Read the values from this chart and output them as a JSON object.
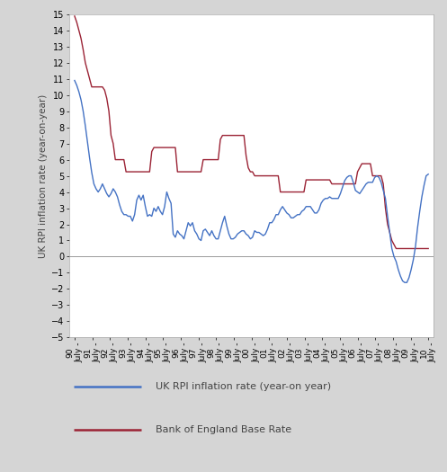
{
  "ylabel": "UK RPI inflation rate (year-on-year)",
  "ylim": [
    -5,
    15
  ],
  "yticks": [
    -5,
    -4,
    -3,
    -2,
    -1,
    0,
    1,
    2,
    3,
    4,
    5,
    6,
    7,
    8,
    9,
    10,
    11,
    12,
    13,
    14,
    15
  ],
  "chart_bg": "#ffffff",
  "outer_bg": "#d5d5d5",
  "legend_bg": "#f0f0f0",
  "rpi_color": "#4472C4",
  "boe_color": "#9B2335",
  "rpi_label": "UK RPI inflation rate (year-on year)",
  "boe_label": "Bank of England Base Rate",
  "x_labels": [
    "90",
    "91",
    "92",
    "93",
    "94",
    "95",
    "96",
    "97",
    "98",
    "99",
    "00",
    "01",
    "02",
    "03",
    "04",
    "05",
    "06",
    "07",
    "08",
    "09",
    "10"
  ],
  "rpi_data": [
    10.9,
    10.6,
    10.2,
    9.7,
    9.0,
    8.1,
    7.1,
    6.1,
    5.2,
    4.5,
    4.2,
    4.0,
    4.2,
    4.5,
    4.2,
    3.9,
    3.7,
    3.9,
    4.2,
    4.0,
    3.7,
    3.2,
    2.8,
    2.6,
    2.6,
    2.5,
    2.5,
    2.2,
    2.6,
    3.5,
    3.8,
    3.5,
    3.8,
    3.1,
    2.5,
    2.6,
    2.5,
    3.0,
    2.8,
    3.1,
    2.8,
    2.6,
    3.1,
    4.0,
    3.6,
    3.3,
    1.4,
    1.2,
    1.6,
    1.4,
    1.3,
    1.1,
    1.6,
    2.1,
    1.9,
    2.1,
    1.6,
    1.4,
    1.1,
    1.0,
    1.6,
    1.7,
    1.5,
    1.3,
    1.6,
    1.3,
    1.1,
    1.1,
    1.6,
    2.1,
    2.5,
    1.9,
    1.4,
    1.1,
    1.1,
    1.2,
    1.4,
    1.5,
    1.6,
    1.6,
    1.4,
    1.3,
    1.1,
    1.2,
    1.6,
    1.5,
    1.5,
    1.4,
    1.3,
    1.4,
    1.7,
    2.1,
    2.1,
    2.3,
    2.6,
    2.6,
    2.9,
    3.1,
    2.9,
    2.7,
    2.6,
    2.4,
    2.4,
    2.5,
    2.6,
    2.6,
    2.8,
    2.9,
    3.1,
    3.1,
    3.1,
    2.9,
    2.7,
    2.7,
    2.9,
    3.3,
    3.5,
    3.6,
    3.6,
    3.7,
    3.6,
    3.6,
    3.6,
    3.6,
    3.9,
    4.3,
    4.7,
    4.9,
    5.0,
    5.0,
    4.6,
    4.1,
    4.0,
    3.9,
    4.1,
    4.3,
    4.5,
    4.6,
    4.6,
    4.6,
    4.9,
    5.0,
    4.9,
    4.6,
    4.1,
    3.6,
    2.5,
    1.5,
    0.5,
    0.0,
    -0.3,
    -0.8,
    -1.2,
    -1.5,
    -1.6,
    -1.6,
    -1.3,
    -0.8,
    -0.2,
    0.6,
    1.8,
    2.8,
    3.7,
    4.4,
    5.0,
    5.1
  ],
  "boe_data": [
    14.88,
    14.5,
    14.0,
    13.5,
    12.8,
    12.0,
    11.5,
    11.0,
    10.5,
    10.5,
    10.5,
    10.5,
    10.5,
    10.5,
    10.3,
    9.8,
    9.0,
    7.5,
    7.0,
    6.0,
    6.0,
    6.0,
    6.0,
    6.0,
    5.25,
    5.25,
    5.25,
    5.25,
    5.25,
    5.25,
    5.25,
    5.25,
    5.25,
    5.25,
    5.25,
    5.25,
    6.5,
    6.75,
    6.75,
    6.75,
    6.75,
    6.75,
    6.75,
    6.75,
    6.75,
    6.75,
    6.75,
    6.75,
    5.25,
    5.25,
    5.25,
    5.25,
    5.25,
    5.25,
    5.25,
    5.25,
    5.25,
    5.25,
    5.25,
    5.25,
    6.0,
    6.0,
    6.0,
    6.0,
    6.0,
    6.0,
    6.0,
    6.0,
    7.25,
    7.5,
    7.5,
    7.5,
    7.5,
    7.5,
    7.5,
    7.5,
    7.5,
    7.5,
    7.5,
    7.5,
    6.25,
    5.5,
    5.25,
    5.25,
    5.0,
    5.0,
    5.0,
    5.0,
    5.0,
    5.0,
    5.0,
    5.0,
    5.0,
    5.0,
    5.0,
    5.0,
    4.0,
    4.0,
    4.0,
    4.0,
    4.0,
    4.0,
    4.0,
    4.0,
    4.0,
    4.0,
    4.0,
    4.0,
    4.75,
    4.75,
    4.75,
    4.75,
    4.75,
    4.75,
    4.75,
    4.75,
    4.75,
    4.75,
    4.75,
    4.75,
    4.5,
    4.5,
    4.5,
    4.5,
    4.5,
    4.5,
    4.5,
    4.5,
    4.5,
    4.5,
    4.5,
    4.5,
    5.25,
    5.5,
    5.75,
    5.75,
    5.75,
    5.75,
    5.75,
    5.0,
    5.0,
    5.0,
    5.0,
    5.0,
    4.5,
    3.0,
    2.0,
    1.5,
    1.0,
    0.75,
    0.5,
    0.5,
    0.5,
    0.5,
    0.5,
    0.5,
    0.5,
    0.5,
    0.5,
    0.5,
    0.5,
    0.5,
    0.5,
    0.5,
    0.5,
    0.5
  ]
}
